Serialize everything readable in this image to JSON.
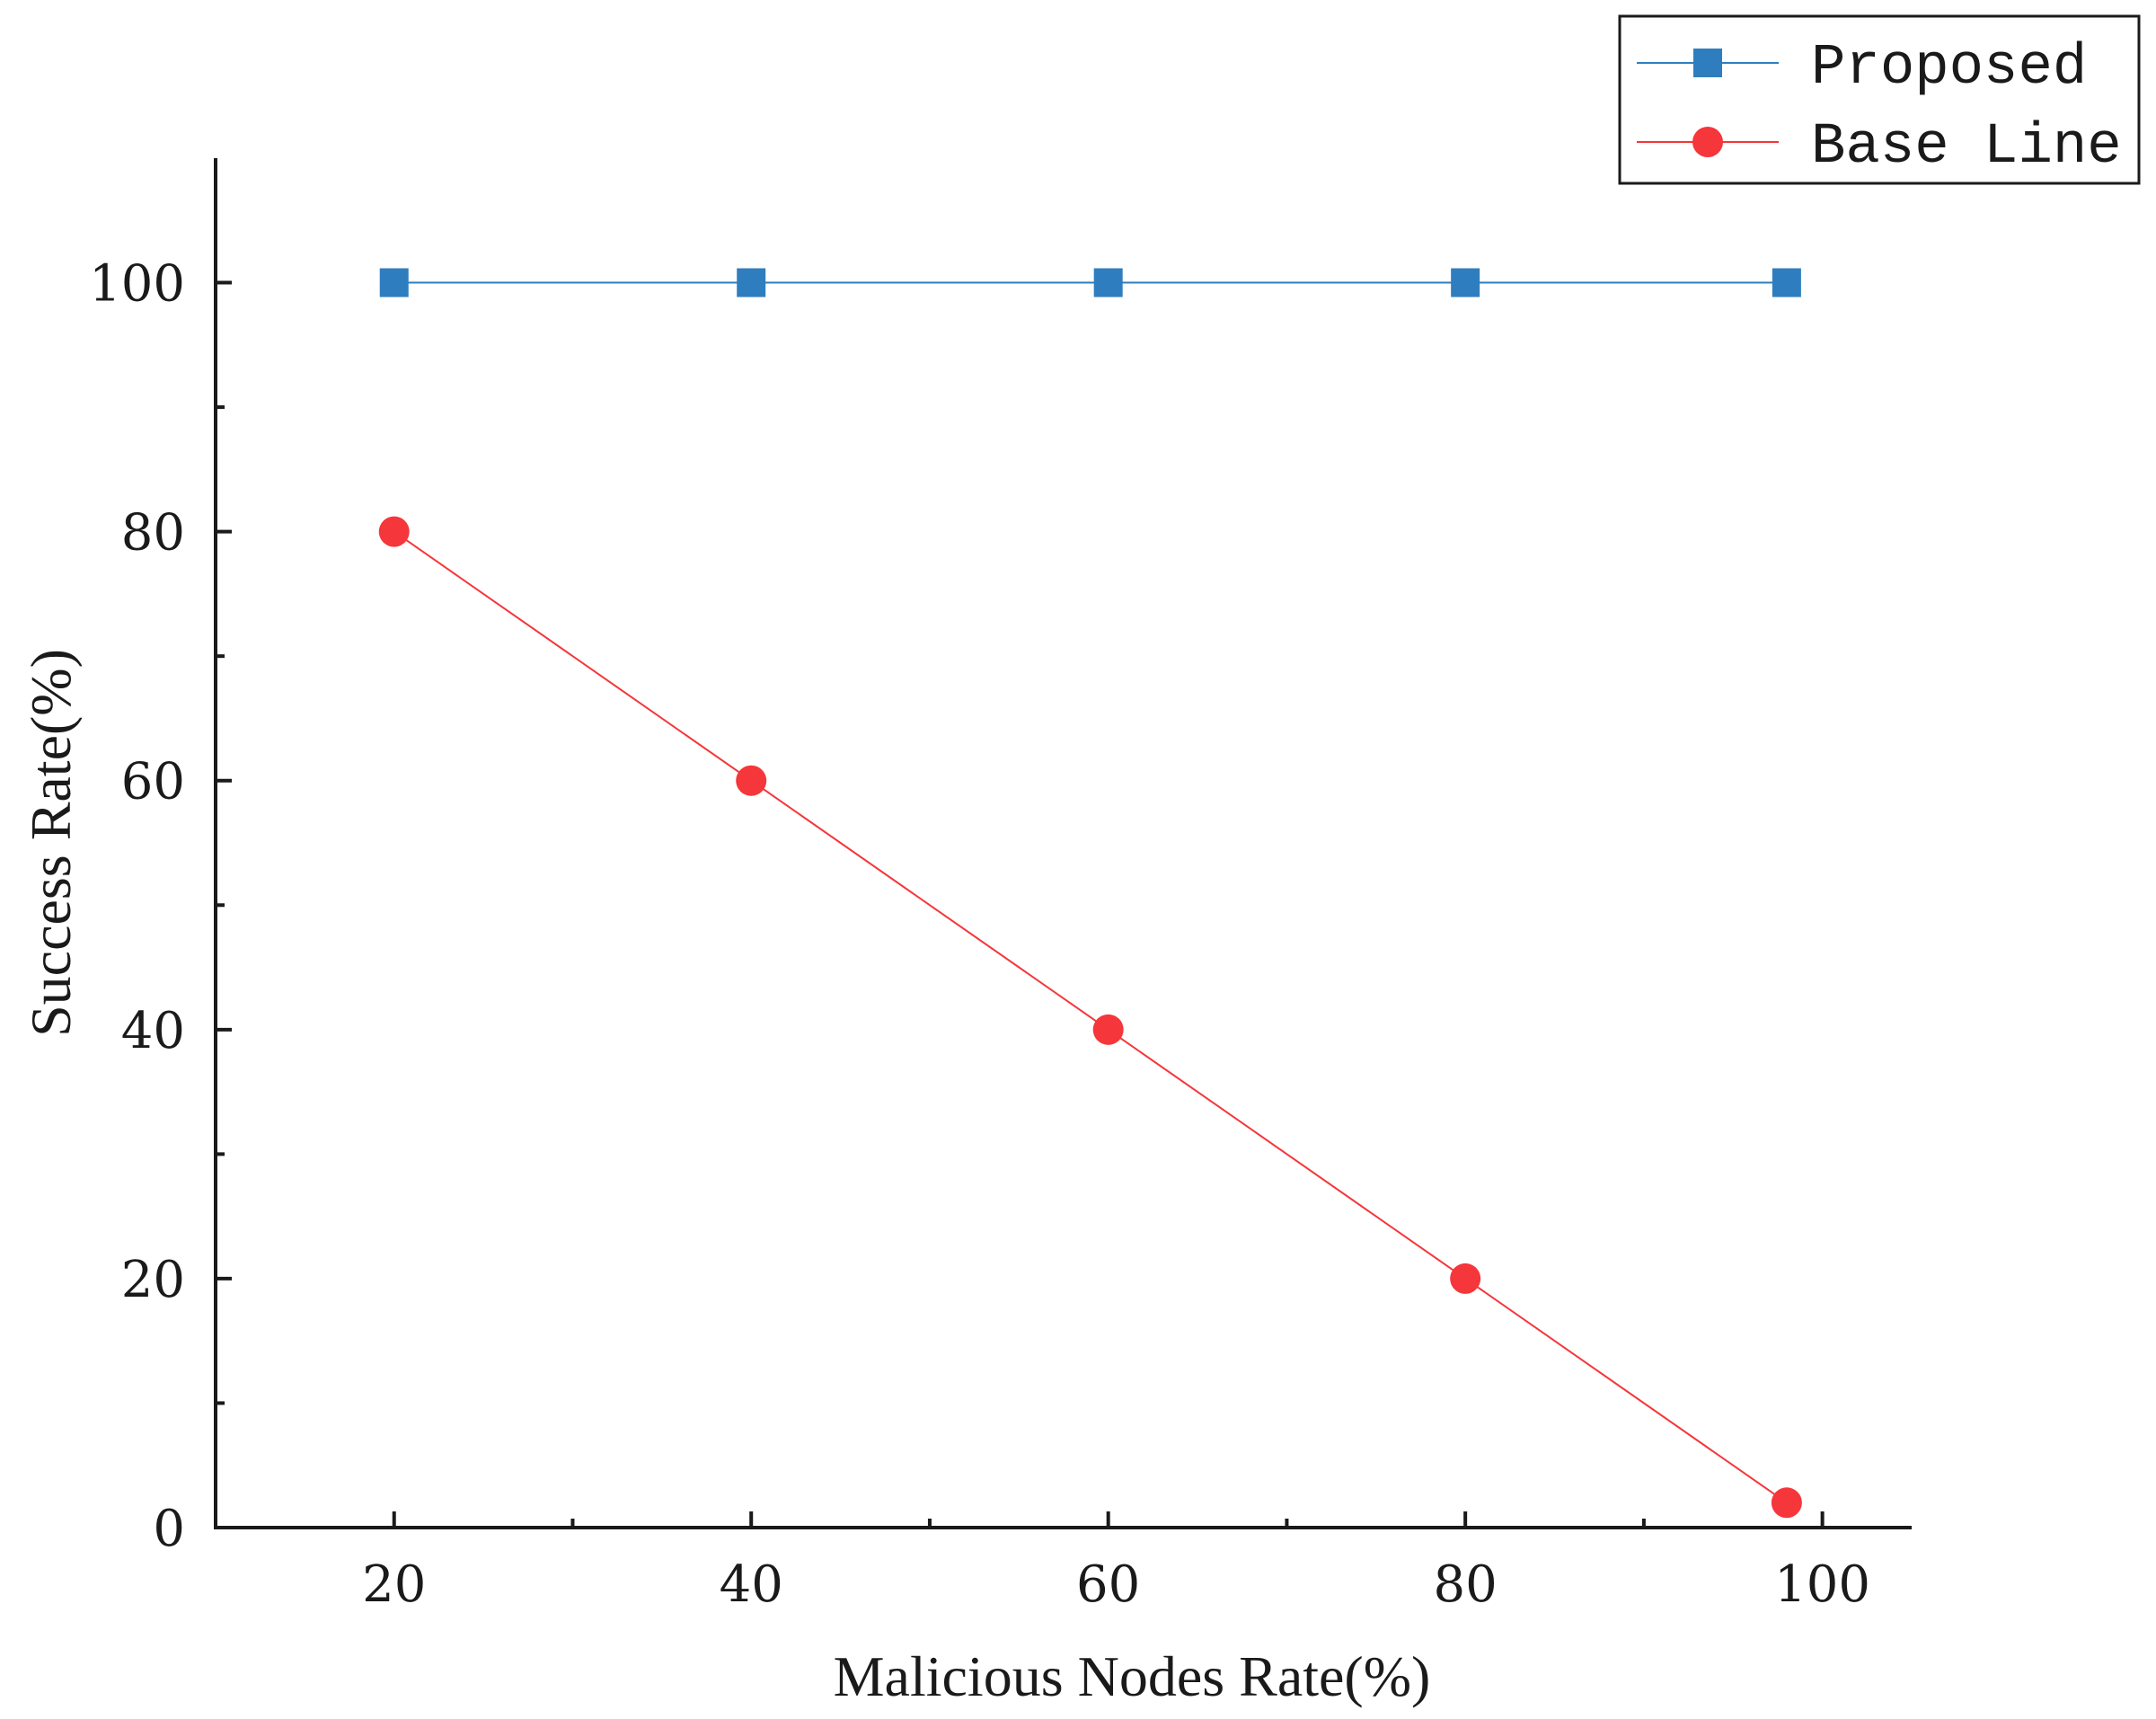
{
  "chart_data": {
    "type": "line",
    "title": "",
    "xlabel": "Malicious Nodes Rate(%)",
    "ylabel": "Success Rate(%)",
    "xlim": [
      10,
      105
    ],
    "ylim": [
      0,
      110
    ],
    "x_ticks": [
      20,
      40,
      60,
      80,
      100
    ],
    "x_minor_ticks": [
      30,
      50,
      70,
      90
    ],
    "y_ticks": [
      0,
      20,
      40,
      60,
      80,
      100
    ],
    "y_minor_ticks": [
      10,
      30,
      50,
      70,
      90
    ],
    "legend_position": "top-right",
    "series": [
      {
        "name": "Proposed",
        "color": "#2e7ebf",
        "marker": "square",
        "x": [
          20,
          40,
          60,
          80,
          98
        ],
        "y": [
          100,
          100,
          100,
          100,
          100
        ]
      },
      {
        "name": "Base Line",
        "color": "#f5363a",
        "marker": "circle",
        "x": [
          20,
          40,
          60,
          80,
          98
        ],
        "y": [
          80,
          60,
          40,
          20,
          2
        ]
      }
    ]
  }
}
